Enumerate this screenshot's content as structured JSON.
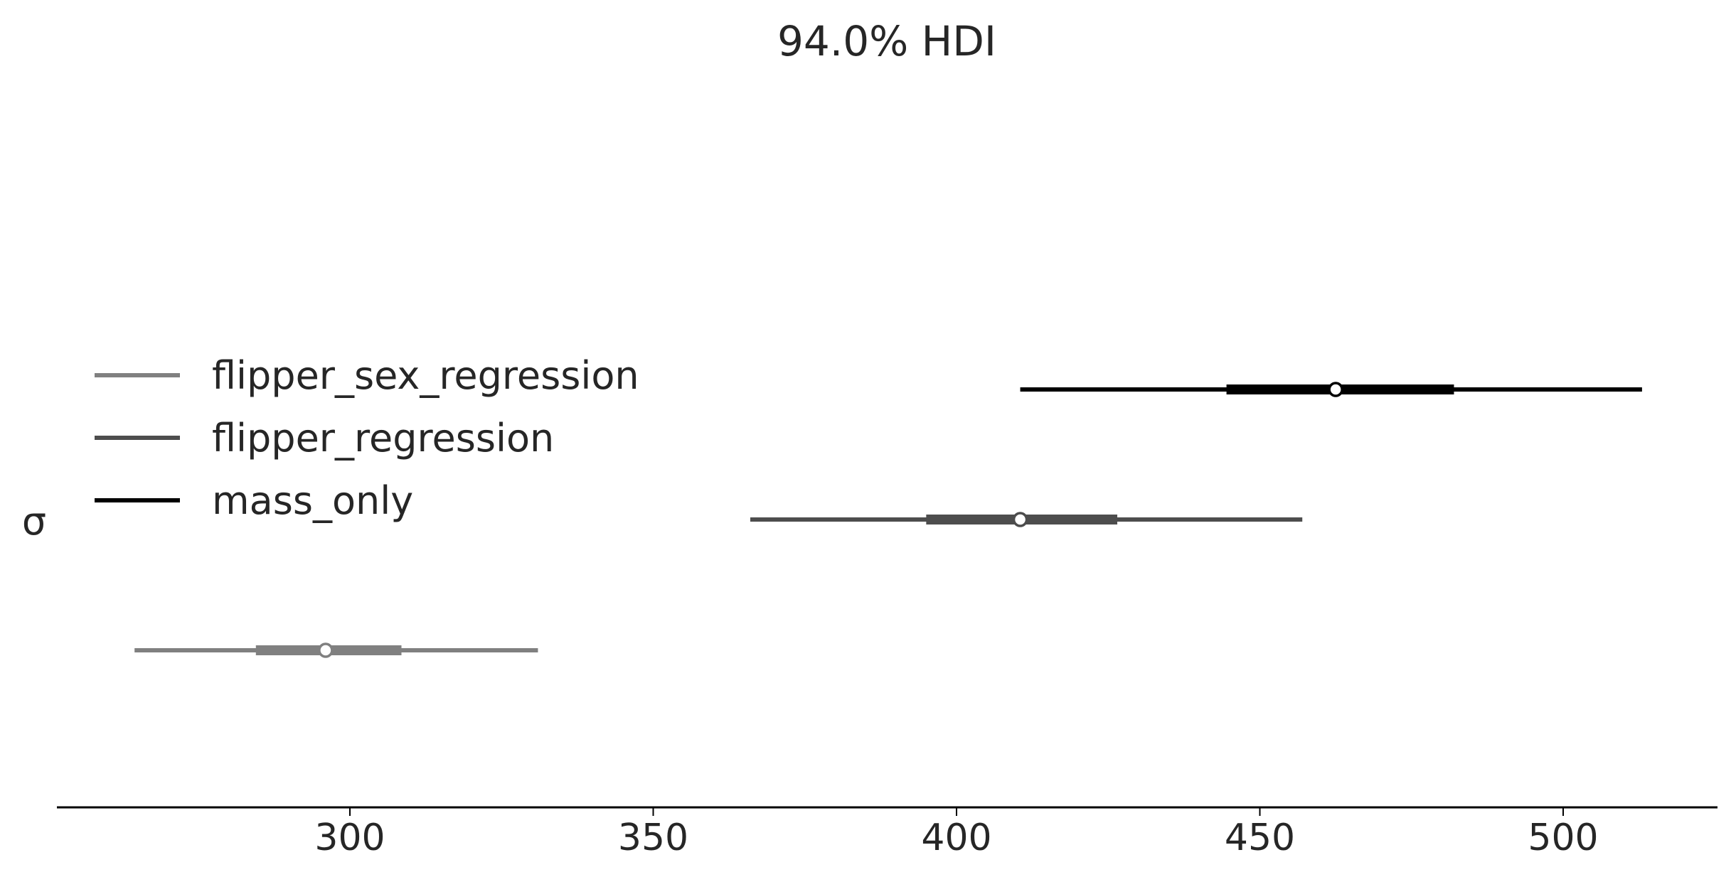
{
  "chart_data": {
    "type": "forest",
    "title": "94.0% HDI",
    "ylabel": "σ",
    "xlim": [
      252,
      525
    ],
    "xticks": [
      "300",
      "350",
      "400",
      "450",
      "500"
    ],
    "grid": false,
    "legend_position": "upper-left",
    "series": [
      {
        "name": "mass_only",
        "color": "#000000",
        "hdi_low": 410.5,
        "hdi_high": 513,
        "iqr_low": 444.5,
        "iqr_high": 482,
        "point": 462.5
      },
      {
        "name": "flipper_regression",
        "color": "#4d4d4d",
        "hdi_low": 366,
        "hdi_high": 457,
        "iqr_low": 395,
        "iqr_high": 426.5,
        "point": 410.5
      },
      {
        "name": "flipper_sex_regression",
        "color": "#808080",
        "hdi_low": 264.5,
        "hdi_high": 331,
        "iqr_low": 284.5,
        "iqr_high": 308.5,
        "point": 296
      }
    ],
    "legend": [
      "flipper_sex_regression",
      "flipper_regression",
      "mass_only"
    ]
  }
}
